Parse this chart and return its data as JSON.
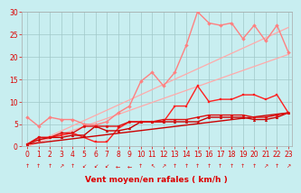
{
  "xlabel": "Vent moyen/en rafales ( km/h )",
  "ylabel": "",
  "xlim": [
    -0.5,
    23.3
  ],
  "ylim": [
    0,
    30
  ],
  "xticks": [
    0,
    1,
    2,
    3,
    4,
    5,
    6,
    7,
    8,
    9,
    10,
    11,
    12,
    13,
    14,
    15,
    16,
    17,
    18,
    19,
    20,
    21,
    22,
    23
  ],
  "yticks": [
    0,
    5,
    10,
    15,
    20,
    25,
    30
  ],
  "bg_color": "#c8eef0",
  "grid_color": "#a0c8c8",
  "series": [
    {
      "comment": "light pink straight line 1 (no markers, linear)",
      "color": "#ffaaaa",
      "linewidth": 0.9,
      "marker": null,
      "data_x": [
        0,
        23
      ],
      "data_y": [
        0.0,
        20.5
      ]
    },
    {
      "comment": "light pink straight line 2 (no markers, linear, steeper)",
      "color": "#ffaaaa",
      "linewidth": 0.9,
      "marker": null,
      "data_x": [
        0,
        23
      ],
      "data_y": [
        0.0,
        26.5
      ]
    },
    {
      "comment": "pink with diamond markers - peaks ~30 at x=15",
      "color": "#ff8080",
      "linewidth": 1.0,
      "marker": "D",
      "markersize": 2.0,
      "data_x": [
        0,
        1,
        2,
        3,
        4,
        5,
        6,
        7,
        8,
        9,
        10,
        11,
        12,
        13,
        14,
        15,
        16,
        17,
        18,
        19,
        20,
        21,
        22,
        23
      ],
      "data_y": [
        6.5,
        4.5,
        6.5,
        6.0,
        6.0,
        5.0,
        4.8,
        5.5,
        7.5,
        9.0,
        14.5,
        16.5,
        13.5,
        16.5,
        22.5,
        30.0,
        27.5,
        27.0,
        27.5,
        24.0,
        27.0,
        23.5,
        27.0,
        21.0
      ]
    },
    {
      "comment": "red line with small square markers - moderate peaks",
      "color": "#ff2020",
      "linewidth": 1.0,
      "marker": "s",
      "markersize": 2.0,
      "data_x": [
        0,
        1,
        2,
        3,
        4,
        5,
        6,
        7,
        8,
        9,
        10,
        11,
        12,
        13,
        14,
        15,
        16,
        17,
        18,
        19,
        20,
        21,
        22,
        23
      ],
      "data_y": [
        0.5,
        2.0,
        2.0,
        2.5,
        3.0,
        2.0,
        1.0,
        1.0,
        4.0,
        5.5,
        5.5,
        5.5,
        5.5,
        9.0,
        9.0,
        13.5,
        10.0,
        10.5,
        10.5,
        11.5,
        11.5,
        10.5,
        11.5,
        7.5
      ]
    },
    {
      "comment": "dark red nearly flat line with triangle markers",
      "color": "#cc0000",
      "linewidth": 1.0,
      "marker": "^",
      "markersize": 2.0,
      "data_x": [
        0,
        1,
        2,
        3,
        4,
        5,
        6,
        7,
        8,
        9,
        10,
        11,
        12,
        13,
        14,
        15,
        16,
        17,
        18,
        19,
        20,
        21,
        22,
        23
      ],
      "data_y": [
        0.5,
        1.5,
        2.0,
        2.0,
        2.5,
        2.5,
        4.5,
        3.5,
        3.5,
        4.0,
        5.5,
        5.5,
        5.5,
        5.5,
        5.5,
        5.5,
        6.5,
        6.5,
        6.5,
        6.5,
        6.0,
        6.0,
        6.5,
        7.5
      ]
    },
    {
      "comment": "dark red smooth rising line",
      "color": "#cc0000",
      "linewidth": 1.0,
      "marker": null,
      "data_x": [
        0,
        23
      ],
      "data_y": [
        0.5,
        7.5
      ]
    },
    {
      "comment": "dark red with circle markers - gently rising",
      "color": "#dd1010",
      "linewidth": 1.0,
      "marker": "o",
      "markersize": 2.0,
      "data_x": [
        0,
        1,
        2,
        3,
        4,
        5,
        6,
        7,
        8,
        9,
        10,
        11,
        12,
        13,
        14,
        15,
        16,
        17,
        18,
        19,
        20,
        21,
        22,
        23
      ],
      "data_y": [
        0.5,
        2.0,
        2.0,
        3.0,
        3.0,
        4.5,
        4.5,
        4.5,
        4.5,
        5.5,
        5.5,
        5.5,
        6.0,
        6.0,
        6.0,
        6.5,
        7.0,
        7.0,
        7.0,
        7.0,
        6.5,
        6.5,
        7.0,
        7.5
      ]
    }
  ],
  "arrow_chars": [
    "↑",
    "↑",
    "↑",
    "↗",
    "↑",
    "↙",
    "↙",
    "↙",
    "←",
    "←",
    "↑",
    "↖",
    "↗",
    "↑",
    "↑",
    "↑",
    "↑",
    "↑",
    "↑",
    "↑",
    "↑",
    "↗",
    "↑",
    "↗"
  ],
  "tick_color": "#dd0000",
  "xlabel_fontsize": 6.5,
  "tick_fontsize": 5.5,
  "arrow_fontsize": 4.5
}
